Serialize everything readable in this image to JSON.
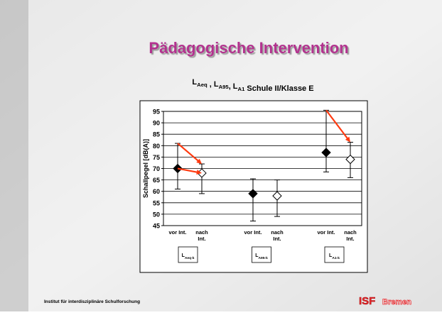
{
  "title": "Pädagogische Intervention",
  "subtitle": [
    {
      "main": "L",
      "sub": "Aeq"
    },
    {
      "main": " , L",
      "sub": "A95"
    },
    {
      "main": ", L",
      "sub": "A1"
    },
    {
      "main": "  Schule II/Klasse E"
    }
  ],
  "footer": "Institut für interdisziplinäre Schulforschung",
  "logo": {
    "abbr": "ISF",
    "city": "Bremen"
  },
  "chart_data": {
    "type": "errorbar",
    "ylabel": "Schallpegel [dB(A)]",
    "categories": [
      "vor Int.",
      "nach Int.",
      "vor Int.",
      "nach Int.",
      "vor Int.",
      "nach Int."
    ],
    "values": [
      70,
      68,
      59,
      58,
      77,
      74
    ],
    "lows": [
      61,
      59,
      47,
      49,
      68.5,
      66
    ],
    "highs": [
      81,
      72,
      65.5,
      65,
      95.5,
      81.5
    ],
    "filled": [
      true,
      false,
      true,
      false,
      true,
      false
    ],
    "groups": [
      {
        "main": "L",
        "sub": "Aeq-k"
      },
      {
        "main": "L",
        "sub": "A95-k"
      },
      {
        "main": "L",
        "sub": "A1-k"
      }
    ],
    "ylim": [
      45,
      95
    ],
    "yticks": [
      45,
      50,
      55,
      60,
      65,
      70,
      75,
      80,
      85,
      90,
      95
    ],
    "grid": true,
    "arrow_color": "#ff3a10",
    "title_color": "#b3338f"
  }
}
